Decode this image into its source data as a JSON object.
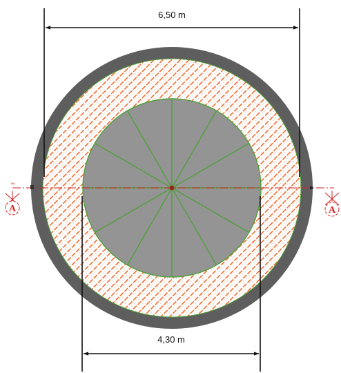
{
  "dimensions": {
    "outer_diameter_label": "6,50 m",
    "inner_diameter_label": "4,30 m"
  },
  "section_cut": {
    "tag_left": "A",
    "tag_right": "A"
  },
  "staircase": {
    "segment_count": 12
  },
  "colors": {
    "outer_ring": "#5e5e5e",
    "hatch_fill": "#ee6a2c",
    "hatch_background": "#ffffff",
    "stair_fill": "#949494",
    "stair_lines": "#4ea03a",
    "ring_outline": "#4ea03a",
    "section_line": "#d42222",
    "dimension_line": "#111111"
  }
}
